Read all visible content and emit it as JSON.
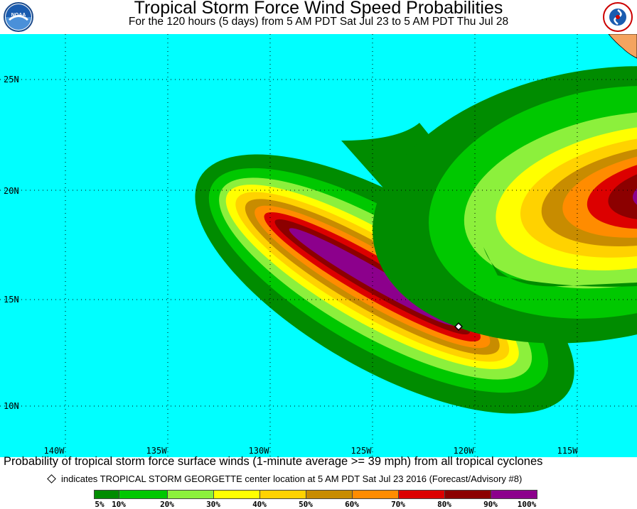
{
  "header": {
    "title": "Tropical Storm Force Wind Speed Probabilities",
    "subtitle": "For the 120 hours (5 days) from 5 AM PDT Sat Jul 23 to 5 AM PDT Thu Jul 28",
    "left_logo_text": "NOAA",
    "right_logo_text": "NATIONAL WEATHER SERVICE"
  },
  "map": {
    "ocean_color": "#00ffff",
    "land_color": "#f4a460",
    "lat_labels": [
      "25N",
      "20N",
      "15N",
      "10N"
    ],
    "lon_labels": [
      "140W",
      "135W",
      "130W",
      "125W",
      "120W",
      "115W"
    ],
    "storm_marker": "diamond"
  },
  "footer": {
    "line1": "Probability of tropical storm force surface winds (1-minute average >= 39 mph) from all tropical cyclones",
    "line2": "indicates TROPICAL STORM GEORGETTE center location at 5 AM PDT Sat Jul 23 2016 (Forecast/Advisory #8)"
  },
  "legend": {
    "colors": [
      "#008c00",
      "#00c800",
      "#8cf03c",
      "#ffff00",
      "#ffd200",
      "#c88c00",
      "#ff8c00",
      "#dc0000",
      "#8c0000",
      "#8c008c"
    ],
    "labels": [
      "5%",
      "10%",
      "20%",
      "30%",
      "40%",
      "50%",
      "60%",
      "70%",
      "80%",
      "90%",
      "100%"
    ]
  }
}
